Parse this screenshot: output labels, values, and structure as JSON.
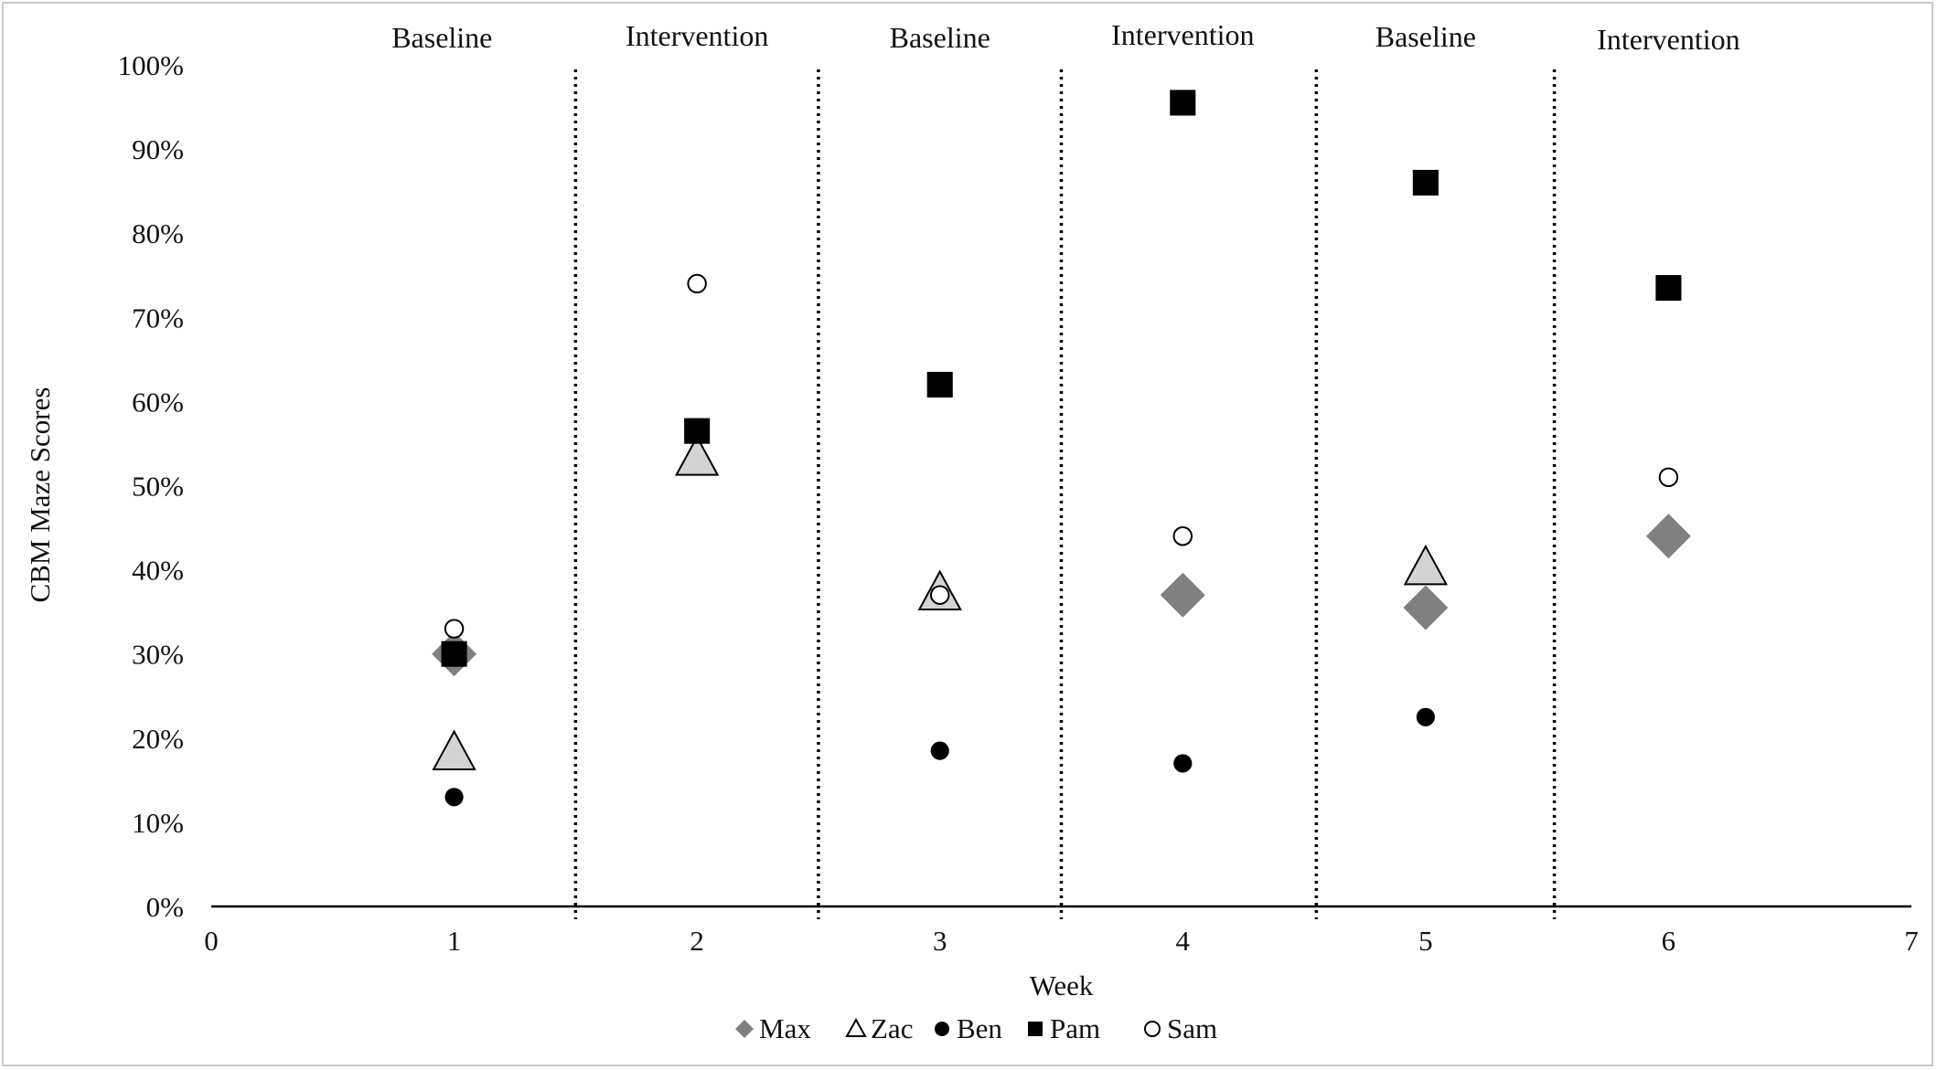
{
  "chart_data": {
    "type": "scatter",
    "xlabel": "Week",
    "ylabel": "CBM Maze Scores",
    "xlim": [
      0,
      7
    ],
    "ylim": [
      0,
      100
    ],
    "x_ticks": [
      "0",
      "1",
      "2",
      "3",
      "4",
      "5",
      "6",
      "7"
    ],
    "y_ticks": [
      "0%",
      "10%",
      "20%",
      "30%",
      "40%",
      "50%",
      "60%",
      "70%",
      "80%",
      "90%",
      "100%"
    ],
    "grid": false,
    "legend_position": "bottom",
    "phases": [
      {
        "label": "Baseline",
        "x_center": 0.95
      },
      {
        "label": "Intervention",
        "x_center": 2.0
      },
      {
        "label": "Baseline",
        "x_center": 3.0
      },
      {
        "label": "Intervention",
        "x_center": 4.0
      },
      {
        "label": "Baseline",
        "x_center": 5.0
      },
      {
        "label": "Intervention",
        "x_center": 6.0
      }
    ],
    "phase_boundaries": [
      1.5,
      2.5,
      3.5,
      4.55,
      5.53
    ],
    "series": [
      {
        "name": "Max",
        "marker": "diamond",
        "color": "#808080",
        "points": [
          [
            1,
            30
          ],
          [
            4,
            37
          ],
          [
            5,
            35.5
          ],
          [
            6,
            44
          ]
        ]
      },
      {
        "name": "Zac",
        "marker": "triangle",
        "color": "#d3d3d3",
        "points": [
          [
            1,
            18
          ],
          [
            2,
            53
          ],
          [
            3,
            37
          ],
          [
            5,
            40
          ]
        ]
      },
      {
        "name": "Ben",
        "marker": "circle",
        "color": "#000000",
        "points": [
          [
            1,
            13
          ],
          [
            3,
            18.5
          ],
          [
            4,
            17
          ],
          [
            5,
            22.5
          ]
        ]
      },
      {
        "name": "Pam",
        "marker": "square",
        "color": "#000000",
        "points": [
          [
            1,
            30
          ],
          [
            2,
            56.5
          ],
          [
            3,
            62
          ],
          [
            4,
            95.5
          ],
          [
            5,
            86
          ],
          [
            6,
            73.5
          ]
        ]
      },
      {
        "name": "Sam",
        "marker": "open-circle",
        "color": "#ffffff",
        "points": [
          [
            1,
            33
          ],
          [
            2,
            74
          ],
          [
            3,
            37
          ],
          [
            4,
            44
          ],
          [
            6,
            51
          ]
        ]
      }
    ]
  }
}
